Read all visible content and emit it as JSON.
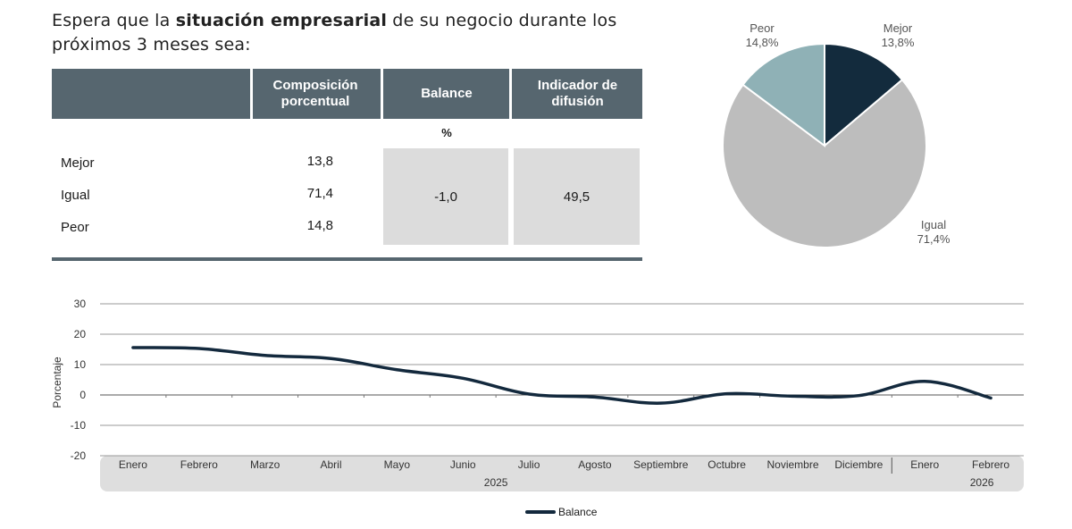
{
  "question": {
    "prefix": "Espera que la ",
    "bold": "situación empresarial",
    "suffix": " de su negocio durante los próximos 3 meses sea:"
  },
  "table": {
    "headers": [
      "Composición porcentual",
      "Balance",
      "Indicador de difusión"
    ],
    "unit": "%",
    "rows": [
      {
        "label": "Mejor",
        "value": "13,8"
      },
      {
        "label": "Igual",
        "value": "71,4"
      },
      {
        "label": "Peor",
        "value": "14,8"
      }
    ],
    "balance": "-1,0",
    "indicador": "49,5"
  },
  "colors": {
    "header": "#56666f",
    "mejor": "#132b3d",
    "igual": "#bdbdbd",
    "peor": "#8fb1b6",
    "line": "#13293d"
  },
  "chart_data": [
    {
      "type": "pie",
      "slices": [
        {
          "name": "Mejor",
          "value": 13.8,
          "label": "13,8%"
        },
        {
          "name": "Igual",
          "value": 71.4,
          "label": "71,4%"
        },
        {
          "name": "Peor",
          "value": 14.8,
          "label": "14,8%"
        }
      ]
    },
    {
      "type": "line",
      "ylabel": "Porcentaje",
      "ylim": [
        -20,
        30
      ],
      "yticks": [
        30,
        20,
        10,
        0,
        -10,
        -20
      ],
      "categories": [
        "Enero",
        "Febrero",
        "Marzo",
        "Abril",
        "Mayo",
        "Junio",
        "Julio",
        "Agosto",
        "Septiembre",
        "Octubre",
        "Noviembre",
        "Diciembre",
        "Enero",
        "Febrero"
      ],
      "year_groups": [
        {
          "label": "2025",
          "start": 0,
          "end": 11
        },
        {
          "label": "2026",
          "start": 12,
          "end": 13
        }
      ],
      "series": [
        {
          "name": "Balance",
          "values": [
            15.6,
            15.3,
            13.0,
            12.0,
            8.3,
            5.5,
            0.3,
            -0.7,
            -2.7,
            0.4,
            -0.4,
            -0.2,
            4.5,
            -1.0
          ]
        }
      ]
    }
  ]
}
